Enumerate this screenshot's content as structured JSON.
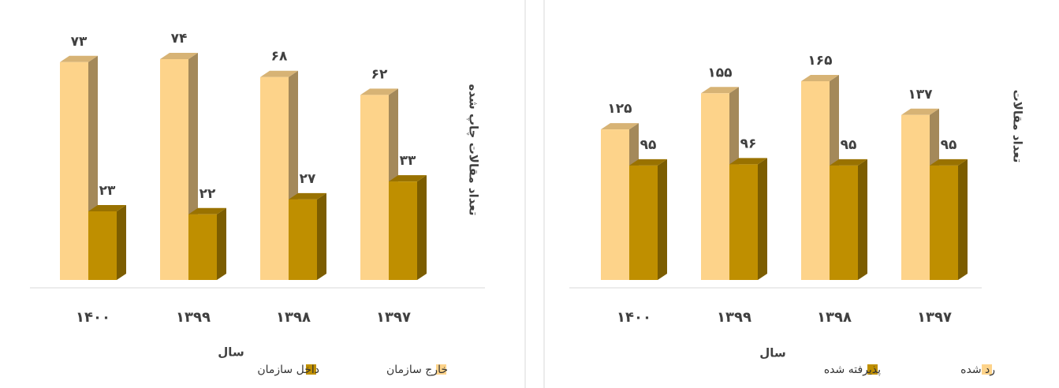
{
  "chart_data": [
    {
      "type": "bar3d",
      "y_label": "تعداد مقالات چاپ شده",
      "x_label": "سال",
      "categories": [
        "۱۴۰۰",
        "۱۳۹۹",
        "۱۳۹۸",
        "۱۳۹۷"
      ],
      "series": [
        {
          "name": "خارج سازمان",
          "color": "#fdd38a",
          "values": [
            73,
            74,
            68,
            62
          ],
          "value_labels": [
            "۷۳",
            "۷۴",
            "۶۸",
            "۶۲"
          ]
        },
        {
          "name": "داخل سازمان",
          "color": "#bf8f00",
          "values": [
            23,
            22,
            27,
            33
          ],
          "value_labels": [
            "۲۳",
            "۲۲",
            "۲۷",
            "۳۳"
          ]
        }
      ]
    },
    {
      "type": "bar3d",
      "y_label": "تعداد مقالات",
      "x_label": "سال",
      "categories": [
        "۱۴۰۰",
        "۱۳۹۹",
        "۱۳۹۸",
        "۱۳۹۷"
      ],
      "series": [
        {
          "name": "رد شده",
          "color": "#fdd38a",
          "values": [
            125,
            155,
            165,
            137
          ],
          "value_labels": [
            "۱۲۵",
            "۱۵۵",
            "۱۶۵",
            "۱۳۷"
          ]
        },
        {
          "name": "پذیرفته شده",
          "color": "#bf8f00",
          "values": [
            95,
            96,
            95,
            95
          ],
          "value_labels": [
            "۹۵",
            "۹۶",
            "۹۵",
            "۹۵"
          ]
        }
      ]
    }
  ]
}
